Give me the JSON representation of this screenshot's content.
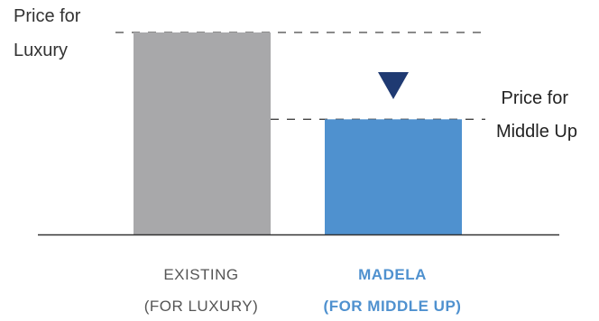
{
  "chart_data": {
    "type": "bar",
    "categories": [
      {
        "line1": "EXISTING",
        "line2": "(FOR LUXURY)"
      },
      {
        "line1": "MADELA",
        "line2": "(FOR MIDDLE UP)"
      }
    ],
    "values": [
      100,
      57
    ],
    "ylim": [
      0,
      100
    ],
    "annotations": {
      "luxury_price_line": {
        "label_line1": "Price for",
        "label_line2": "Luxury",
        "value": 100
      },
      "middle_up_price_line": {
        "label_line1": "Price for",
        "label_line2": "Middle Up",
        "value": 57
      },
      "marker": "down-triangle above MADELA bar"
    }
  },
  "colors": {
    "existing_bar": "#a8a8aa",
    "madela_bar": "#4f91cf",
    "madela_label": "#4f91cf",
    "existing_label": "#555555",
    "annotation_text": "#333333",
    "marker": "#1f3a72",
    "axis": "#333333",
    "dashed_line": "#444444"
  }
}
